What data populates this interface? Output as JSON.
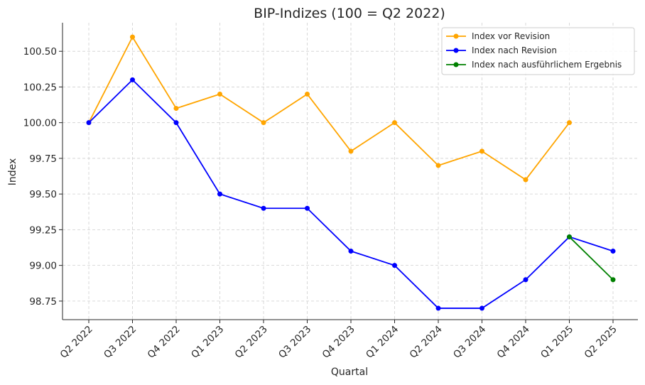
{
  "chart_data": {
    "type": "line",
    "title": "BIP-Indizes (100 = Q2 2022)",
    "xlabel": "Quartal",
    "ylabel": "Index",
    "categories": [
      "Q2 2022",
      "Q3 2022",
      "Q4 2022",
      "Q1 2023",
      "Q2 2023",
      "Q3 2023",
      "Q4 2023",
      "Q1 2024",
      "Q2 2024",
      "Q3 2024",
      "Q4 2024",
      "Q1 2025",
      "Q2 2025"
    ],
    "yticks": [
      "98.75",
      "99.00",
      "99.25",
      "99.50",
      "99.75",
      "100.00",
      "100.25",
      "100.50"
    ],
    "ylim": [
      98.62,
      100.7
    ],
    "grid": true,
    "legend_position": "top-right",
    "series": [
      {
        "name": "Index vor Revision",
        "color": "#FFA500",
        "values": [
          100.0,
          100.6,
          100.1,
          100.2,
          100.0,
          100.2,
          99.8,
          100.0,
          99.7,
          99.8,
          99.6,
          100.0,
          null
        ]
      },
      {
        "name": "Index nach Revision",
        "color": "#0000FF",
        "values": [
          100.0,
          100.3,
          100.0,
          99.5,
          99.4,
          99.4,
          99.1,
          99.0,
          98.7,
          98.7,
          98.9,
          99.2,
          99.1
        ]
      },
      {
        "name": "Index nach ausführlichem Ergebnis",
        "color": "#008000",
        "values": [
          null,
          null,
          null,
          null,
          null,
          null,
          null,
          null,
          null,
          null,
          null,
          99.2,
          98.9
        ]
      }
    ]
  }
}
